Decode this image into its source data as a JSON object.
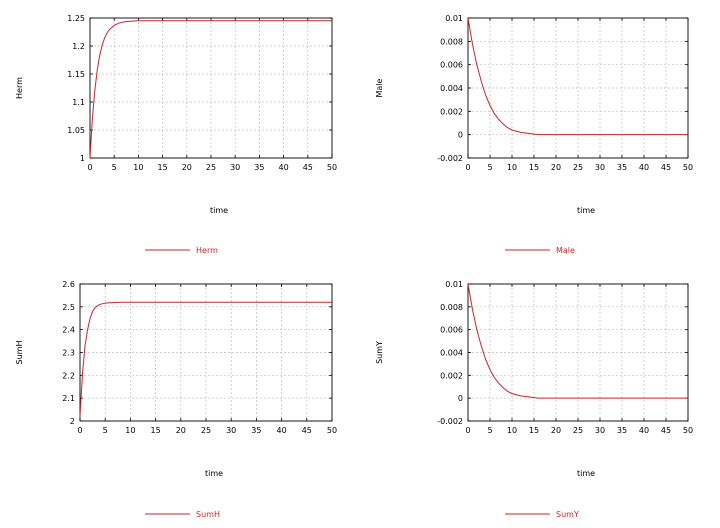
{
  "line_color": "#c0282f",
  "chart_data": [
    {
      "type": "line",
      "xlabel": "time",
      "ylabel": "Herm",
      "xlim": [
        0,
        50
      ],
      "ylim": [
        1,
        1.25
      ],
      "x_ticks": [
        "0",
        "5",
        "10",
        "15",
        "20",
        "25",
        "30",
        "35",
        "40",
        "45",
        "50"
      ],
      "y_ticks": [
        "1",
        "1.05",
        "1.1",
        "1.15",
        "1.2",
        "1.25"
      ],
      "grid": true,
      "legend_position": "bottom",
      "series": [
        {
          "name": "Herm",
          "x": [
            0,
            0.5,
            1,
            1.5,
            2,
            2.5,
            3,
            3.5,
            4,
            5,
            6,
            7,
            8,
            10,
            12,
            15,
            20,
            30,
            40,
            50
          ],
          "values": [
            1.0,
            1.071,
            1.121,
            1.157,
            1.183,
            1.201,
            1.214,
            1.223,
            1.229,
            1.237,
            1.241,
            1.243,
            1.244,
            1.245,
            1.245,
            1.245,
            1.245,
            1.245,
            1.245,
            1.245
          ]
        }
      ]
    },
    {
      "type": "line",
      "xlabel": "time",
      "ylabel": "Male",
      "xlim": [
        0,
        50
      ],
      "ylim": [
        -0.002,
        0.01
      ],
      "x_ticks": [
        "0",
        "5",
        "10",
        "15",
        "20",
        "25",
        "30",
        "35",
        "40",
        "45",
        "50"
      ],
      "y_ticks": [
        "-0.002",
        "0",
        "0.002",
        "0.004",
        "0.006",
        "0.008",
        "0.01"
      ],
      "grid": true,
      "legend_position": "bottom",
      "series": [
        {
          "name": "Male",
          "x": [
            0,
            1,
            2,
            3,
            4,
            5,
            6,
            7,
            8,
            9,
            10,
            12,
            14,
            16,
            20,
            30,
            40,
            50
          ],
          "values": [
            0.01,
            0.0078,
            0.006,
            0.0046,
            0.0034,
            0.0025,
            0.0018,
            0.0013,
            0.0009,
            0.0006,
            0.0004,
            0.0002,
            0.0001,
            0.0,
            0.0,
            0.0,
            0.0,
            0.0
          ]
        }
      ]
    },
    {
      "type": "line",
      "xlabel": "time",
      "ylabel": "SumH",
      "xlim": [
        0,
        50
      ],
      "ylim": [
        2,
        2.6
      ],
      "x_ticks": [
        "0",
        "5",
        "10",
        "15",
        "20",
        "25",
        "30",
        "35",
        "40",
        "45",
        "50"
      ],
      "y_ticks": [
        "2",
        "2.1",
        "2.2",
        "2.3",
        "2.4",
        "2.5",
        "2.6"
      ],
      "grid": true,
      "legend_position": "bottom",
      "series": [
        {
          "name": "SumH",
          "x": [
            0,
            0.5,
            1,
            1.5,
            2,
            2.5,
            3,
            3.5,
            4,
            5,
            6,
            7,
            8,
            10,
            12,
            15,
            20,
            30,
            40,
            50
          ],
          "values": [
            2.02,
            2.21,
            2.33,
            2.4,
            2.45,
            2.48,
            2.497,
            2.505,
            2.511,
            2.516,
            2.518,
            2.519,
            2.52,
            2.52,
            2.52,
            2.52,
            2.52,
            2.52,
            2.52,
            2.52
          ]
        }
      ]
    },
    {
      "type": "line",
      "xlabel": "time",
      "ylabel": "SumY",
      "xlim": [
        0,
        50
      ],
      "ylim": [
        -0.002,
        0.01
      ],
      "x_ticks": [
        "0",
        "5",
        "10",
        "15",
        "20",
        "25",
        "30",
        "35",
        "40",
        "45",
        "50"
      ],
      "y_ticks": [
        "-0.002",
        "0",
        "0.002",
        "0.004",
        "0.006",
        "0.008",
        "0.01"
      ],
      "grid": true,
      "legend_position": "bottom",
      "series": [
        {
          "name": "SumY",
          "x": [
            0,
            1,
            2,
            3,
            4,
            5,
            6,
            7,
            8,
            9,
            10,
            12,
            14,
            16,
            20,
            30,
            40,
            50
          ],
          "values": [
            0.01,
            0.0078,
            0.006,
            0.0046,
            0.0034,
            0.0025,
            0.0018,
            0.0013,
            0.0009,
            0.0006,
            0.0004,
            0.0002,
            0.0001,
            0.0,
            0.0,
            0.0,
            0.0,
            0.0
          ]
        }
      ]
    }
  ]
}
